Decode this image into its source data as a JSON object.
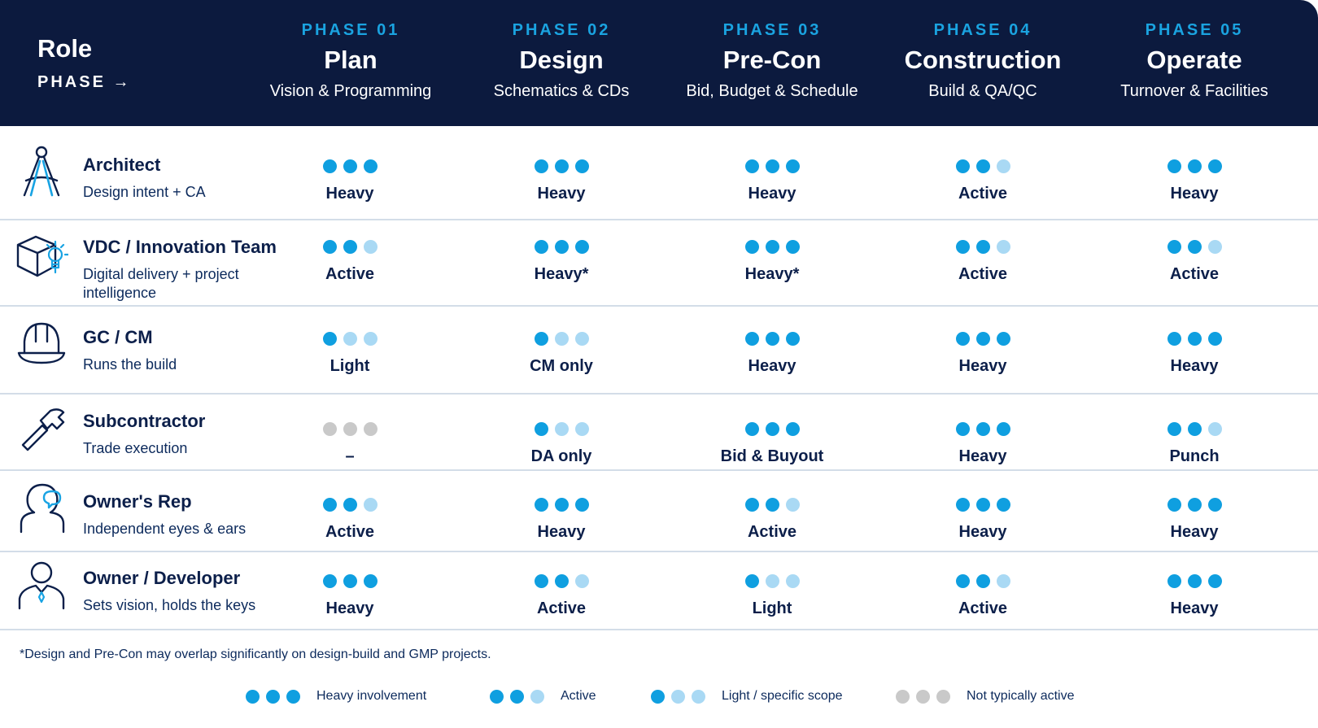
{
  "header": {
    "role_label": "Role",
    "phase_label": "PHASE →",
    "phases": [
      {
        "num": "PHASE 01",
        "name": "Plan",
        "sub": "Vision & Programming"
      },
      {
        "num": "PHASE 02",
        "name": "Design",
        "sub": "Schematics & CDs"
      },
      {
        "num": "PHASE 03",
        "name": "Pre-Con",
        "sub": "Bid, Budget & Schedule"
      },
      {
        "num": "PHASE 04",
        "name": "Construction",
        "sub": "Build & QA/QC"
      },
      {
        "num": "PHASE 05",
        "name": "Operate",
        "sub": "Turnover & Facilities"
      }
    ]
  },
  "colors": {
    "header_bg": "#0c1a3e",
    "dot_full": "#0f9fe0",
    "dot_light": "#a9d9f4",
    "dot_none": "#c9c9c9"
  },
  "roles": [
    {
      "icon": "architect-compass-icon",
      "name": "Architect",
      "desc": "Design intent + CA",
      "cells": [
        {
          "level": 3,
          "label": "Heavy"
        },
        {
          "level": 3,
          "label": "Heavy"
        },
        {
          "level": 3,
          "label": "Heavy"
        },
        {
          "level": 2,
          "label": "Active"
        },
        {
          "level": 3,
          "label": "Heavy"
        }
      ]
    },
    {
      "icon": "cube-lightbulb-icon",
      "name": "VDC / Innovation Team",
      "desc": "Digital delivery + project intelligence",
      "cells": [
        {
          "level": 2,
          "label": "Active"
        },
        {
          "level": 3,
          "label": "Heavy*"
        },
        {
          "level": 3,
          "label": "Heavy*"
        },
        {
          "level": 2,
          "label": "Active"
        },
        {
          "level": 2,
          "label": "Active"
        }
      ]
    },
    {
      "icon": "hard-hat-icon",
      "name": "GC / CM",
      "desc": "Runs the build",
      "cells": [
        {
          "level": 1,
          "label": "Light"
        },
        {
          "level": 1,
          "label": "CM only"
        },
        {
          "level": 3,
          "label": "Heavy"
        },
        {
          "level": 3,
          "label": "Heavy"
        },
        {
          "level": 3,
          "label": "Heavy"
        }
      ]
    },
    {
      "icon": "hammer-icon",
      "name": "Subcontractor",
      "desc": "Trade execution",
      "cells": [
        {
          "level": 0,
          "label": "–"
        },
        {
          "level": 1,
          "label": "DA only"
        },
        {
          "level": 3,
          "label": "Bid & Buyout"
        },
        {
          "level": 3,
          "label": "Heavy"
        },
        {
          "level": 2,
          "label": "Punch"
        }
      ]
    },
    {
      "icon": "person-speech-icon",
      "name": "Owner's Rep",
      "desc": "Independent eyes & ears",
      "cells": [
        {
          "level": 2,
          "label": "Active"
        },
        {
          "level": 3,
          "label": "Heavy"
        },
        {
          "level": 2,
          "label": "Active"
        },
        {
          "level": 3,
          "label": "Heavy"
        },
        {
          "level": 3,
          "label": "Heavy"
        }
      ]
    },
    {
      "icon": "person-tie-icon",
      "name": "Owner / Developer",
      "desc": "Sets vision, holds the keys",
      "cells": [
        {
          "level": 3,
          "label": "Heavy"
        },
        {
          "level": 2,
          "label": "Active"
        },
        {
          "level": 1,
          "label": "Light"
        },
        {
          "level": 2,
          "label": "Active"
        },
        {
          "level": 3,
          "label": "Heavy"
        }
      ]
    }
  ],
  "footnote": "*Design and Pre-Con may overlap significantly on design-build and GMP projects.",
  "legend": [
    {
      "level": 3,
      "label": "Heavy involvement"
    },
    {
      "level": 2,
      "label": "Active"
    },
    {
      "level": 1,
      "label": "Light / specific scope"
    },
    {
      "level": 0,
      "label": "Not typically active"
    }
  ]
}
